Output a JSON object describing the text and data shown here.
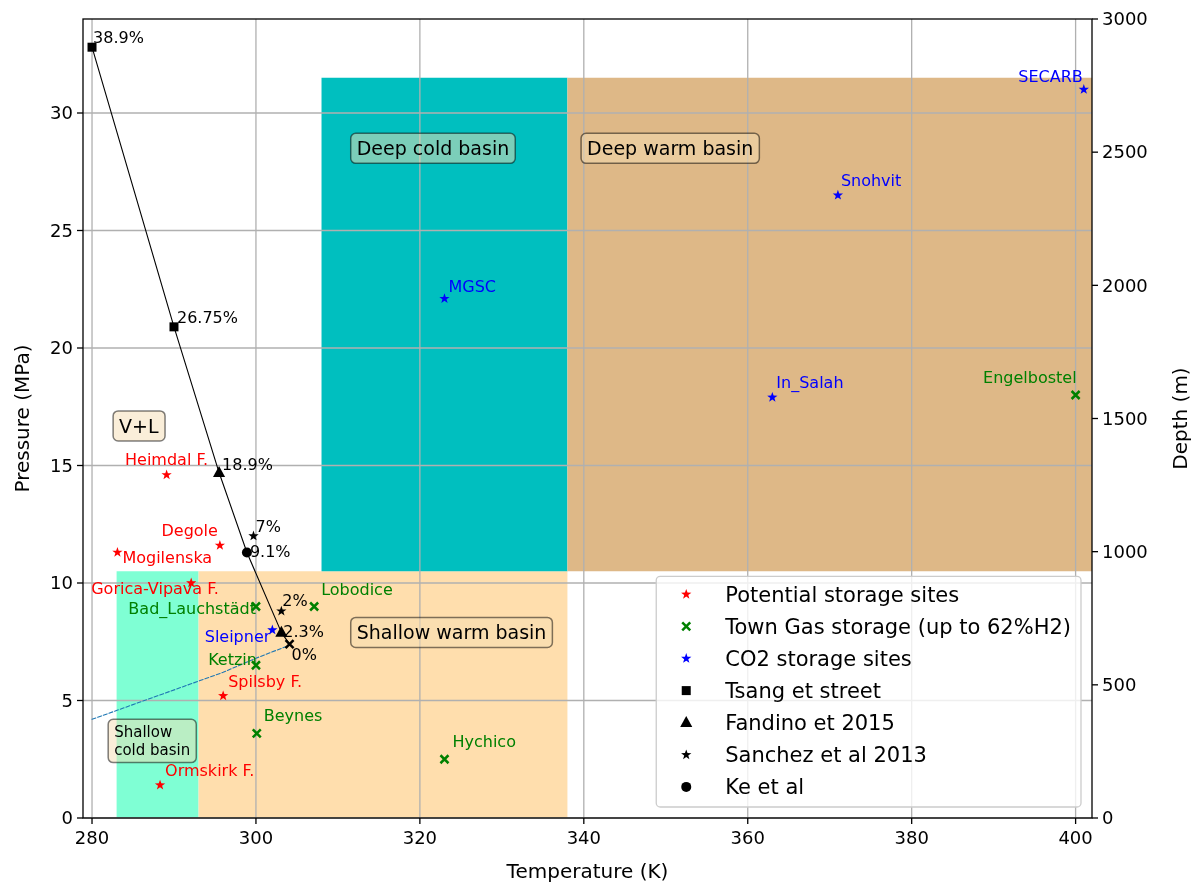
{
  "chart_data": {
    "type": "scatter",
    "xlabel": "Temperature (K)",
    "ylabel": "Pressure (MPa)",
    "y2label": "Depth (m)",
    "xlim": [
      278.9,
      402
    ],
    "xticks": [
      280,
      300,
      320,
      340,
      360,
      380,
      400
    ],
    "ylim": [
      0,
      34
    ],
    "yticks": [
      0,
      5,
      10,
      15,
      20,
      25,
      30
    ],
    "y2lim": [
      0,
      3000
    ],
    "y2ticks": [
      0,
      500,
      1000,
      1500,
      2000,
      2500,
      3000
    ],
    "grid": true,
    "legend": "bottom right",
    "series": [
      {
        "type": "area",
        "color": "#7fffd4",
        "x": [
          283,
          293
        ],
        "values": [
          10.5,
          10.5
        ]
      },
      {
        "type": "area",
        "color": "#ffdead",
        "x": [
          293,
          338
        ],
        "values": [
          10.5,
          10.5
        ]
      },
      {
        "type": "area",
        "color": "#00bfbf",
        "x": [
          308,
          338
        ],
        "values": [
          null,
          null
        ],
        "lower": [
          10.5,
          10.5
        ],
        "upper": [
          31.5,
          31.5
        ]
      },
      {
        "type": "area",
        "color": "#deb887",
        "x": [
          338,
          402
        ],
        "values": [
          null,
          null
        ],
        "lower": [
          10.5,
          10.5
        ],
        "upper": [
          31.5,
          31.5
        ]
      },
      {
        "type": "line",
        "color": "#1f77b4",
        "line_style": "dashed",
        "x": [
          280,
          284,
          288,
          292,
          296,
          300,
          303.7
        ],
        "values": [
          4.2,
          4.7,
          5.2,
          5.7,
          6.2,
          6.8,
          7.3
        ]
      },
      {
        "type": "line",
        "color": "#000000",
        "x": [
          280,
          290,
          295.5,
          298.9,
          303.1,
          304.1
        ],
        "values": [
          32.8,
          20.9,
          14.7,
          11.3,
          7.9,
          7.4
        ]
      },
      {
        "name": "Potential storage sites",
        "color": "#ff0000",
        "marker": "star",
        "x": [
          289.1,
          295.6,
          283.1,
          292.1,
          296.0,
          288.3
        ],
        "values": [
          14.6,
          11.6,
          11.3,
          10.0,
          5.2,
          1.4
        ]
      },
      {
        "name": "Town Gas storage (up to 62%H2)",
        "color": "#008000",
        "marker": "cross",
        "x": [
          300,
          307.1,
          300,
          300.1,
          323,
          400
        ],
        "values": [
          9.0,
          9.0,
          6.5,
          3.6,
          2.5,
          18.0
        ]
      },
      {
        "name": "CO2 storage sites",
        "color": "#0000ff",
        "marker": "star",
        "x": [
          302,
          323,
          371,
          363,
          401
        ],
        "values": [
          8.0,
          22.1,
          26.5,
          17.9,
          31.0
        ]
      },
      {
        "name": "Tsang et street",
        "color": "#000000",
        "marker": "square",
        "x": [
          280,
          290
        ],
        "values": [
          32.8,
          20.9
        ]
      },
      {
        "name": "Fandino et 2015",
        "color": "#000000",
        "marker": "triangle",
        "x": [
          295.5,
          303.1
        ],
        "values": [
          14.7,
          7.9
        ]
      },
      {
        "name": "Sanchez et al 2013",
        "color": "#000000",
        "marker": "star",
        "x": [
          299.7,
          303.1
        ],
        "values": [
          12.0,
          8.8
        ]
      },
      {
        "name": "Ke et al",
        "color": "#000000",
        "marker": "circle",
        "x": [
          298.9
        ],
        "values": [
          11.3
        ]
      },
      {
        "color": "#000000",
        "marker": "cross",
        "x": [
          304.1
        ],
        "values": [
          7.4
        ]
      }
    ],
    "annotations": [
      "V+L",
      "Deep cold basin",
      "Deep warm basin",
      "Shallow warm basin",
      "Shallow\ncold basin",
      {
        "text": "38.9%",
        "x": 280,
        "y": 32.8
      },
      {
        "text": "26.75%",
        "x": 290,
        "y": 20.9
      },
      {
        "text": "18.9%",
        "x": 295.5,
        "y": 14.7
      },
      {
        "text": "7%",
        "x": 299.7,
        "y": 12.0
      },
      {
        "text": "9.1%",
        "x": 298.9,
        "y": 11.3
      },
      {
        "text": "2%",
        "x": 303.1,
        "y": 8.8
      },
      {
        "text": "2.3%",
        "x": 303.1,
        "y": 7.9
      },
      {
        "text": "0%",
        "x": 304.1,
        "y": 7.4
      },
      {
        "text": "Heimdal F.",
        "x": 289.1,
        "y": 14.6
      },
      {
        "text": "Degole",
        "x": 295.6,
        "y": 11.6
      },
      {
        "text": "Mogilenska",
        "x": 283.1,
        "y": 11.3
      },
      {
        "text": "Gorica-Vipava F.",
        "x": 292.1,
        "y": 10.0
      },
      {
        "text": "Spilsby F.",
        "x": 296.0,
        "y": 5.2
      },
      {
        "text": "Ormskirk F.",
        "x": 288.3,
        "y": 1.4
      },
      {
        "text": "Bad_Lauchstädt",
        "x": 300,
        "y": 9.0
      },
      {
        "text": "Lobodice",
        "x": 307.1,
        "y": 9.0
      },
      {
        "text": "Ketzin",
        "x": 300,
        "y": 6.5
      },
      {
        "text": "Beynes",
        "x": 300.1,
        "y": 3.6
      },
      {
        "text": "Hychico",
        "x": 323,
        "y": 2.5
      },
      {
        "text": "Engelbostel",
        "x": 400,
        "y": 18.0
      },
      {
        "text": "Sleipner",
        "x": 302,
        "y": 8.0
      },
      {
        "text": "MGSC",
        "x": 323,
        "y": 22.1
      },
      {
        "text": "Snohvit",
        "x": 371,
        "y": 26.5
      },
      {
        "text": "In_Salah",
        "x": 363,
        "y": 17.9
      },
      {
        "text": "SECARB",
        "x": 401,
        "y": 31.0
      }
    ]
  }
}
